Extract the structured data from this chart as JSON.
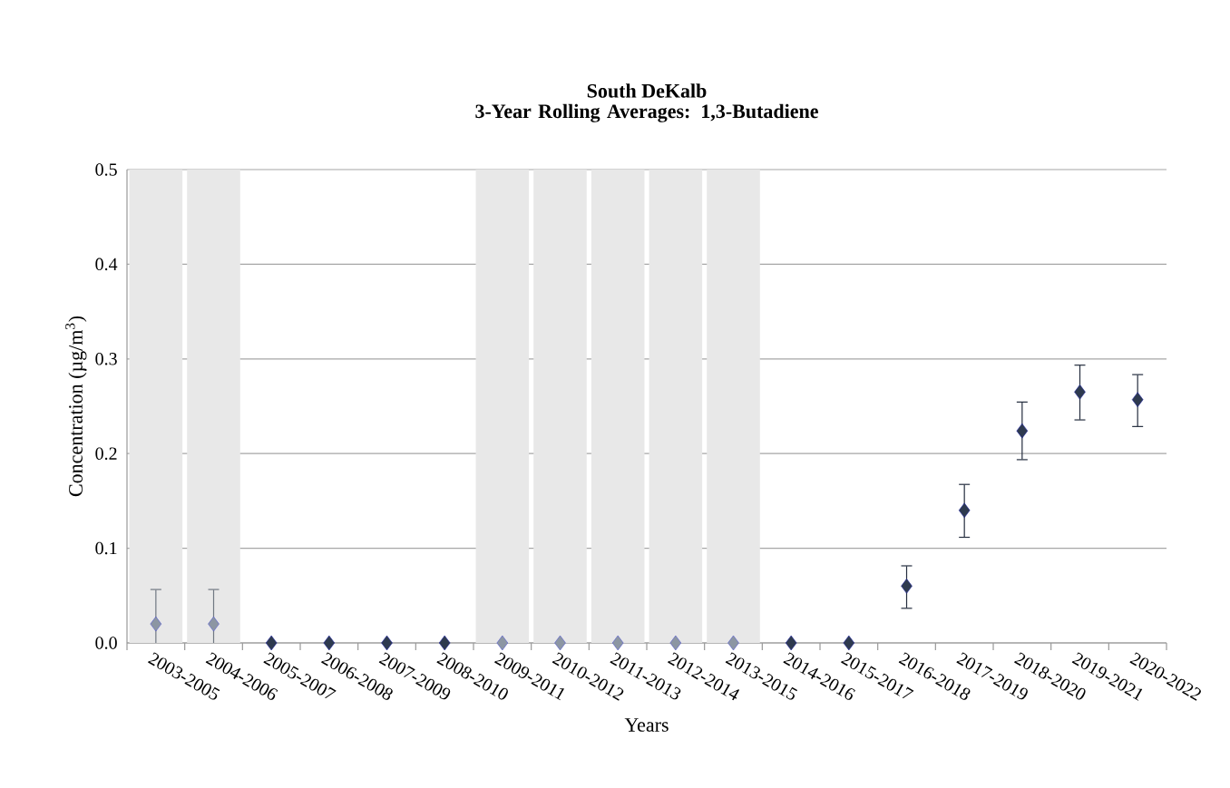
{
  "chart_data": {
    "type": "scatter",
    "title": "South DeKalb",
    "subtitle": "3-Year Rolling Averages: 1,3-Butadiene",
    "xlabel": "Years",
    "ylabel": "Concentration (µg/m$^{3}$)",
    "categories": [
      "2003-2005",
      "2004-2006",
      "2005-2007",
      "2006-2008",
      "2007-2009",
      "2008-2010",
      "2009-2011",
      "2010-2012",
      "2011-2013",
      "2012-2014",
      "2013-2015",
      "2014-2016",
      "2015-2017",
      "2016-2018",
      "2017-2019",
      "2018-2020",
      "2019-2021",
      "2020-2022"
    ],
    "values": [
      0.02,
      0.02,
      0,
      0,
      0,
      0,
      0,
      0,
      0,
      0,
      0,
      0,
      0,
      0.06,
      0.14,
      0.224,
      0.265,
      0.257
    ],
    "colors": [
      "#8c96a3",
      "#8c96a3",
      "#2e3a4f",
      "#2e3a4f",
      "#2e3a4f",
      "#2e3a4f",
      "#8c96a3",
      "#8c96a3",
      "#8c96a3",
      "#8c96a3",
      "#8c96a3",
      "#2e3a4f",
      "#2e3a4f",
      "#2e3a4f",
      "#2e3a4f",
      "#2e3a4f",
      "#2e3a4f",
      "#2e3a4f"
    ],
    "errors": [
      [
        0,
        0.057
      ],
      [
        0,
        0.057
      ],
      null,
      null,
      null,
      null,
      null,
      null,
      null,
      null,
      null,
      null,
      null,
      [
        0.036,
        0.082
      ],
      [
        0.111,
        0.168
      ],
      [
        0.193,
        0.255
      ],
      [
        0.235,
        0.294
      ],
      [
        0.228,
        0.284
      ]
    ],
    "ylim": [
      0,
      0.5
    ],
    "yticks": [
      {
        "value": 0,
        "label": "0.0"
      },
      {
        "value": 0.1,
        "label": "0.1"
      },
      {
        "value": 0.2,
        "label": "0.2"
      },
      {
        "value": 0.3,
        "label": "0.3"
      },
      {
        "value": 0.4,
        "label": "0.4"
      },
      {
        "value": 0.5,
        "label": "0.5"
      }
    ],
    "grid": "y",
    "marker": "diamond",
    "bands": [
      {
        "axis": "x",
        "from": "2003-2005",
        "to": "2003-2005",
        "color": "#e8e8e8"
      },
      {
        "axis": "x",
        "from": "2004-2006",
        "to": "2004-2006",
        "color": "#e8e8e8"
      },
      {
        "axis": "x",
        "from": "2009-2011",
        "to": "2009-2011",
        "color": "#e8e8e8"
      },
      {
        "axis": "x",
        "from": "2010-2012",
        "to": "2010-2012",
        "color": "#e8e8e8"
      },
      {
        "axis": "x",
        "from": "2011-2013",
        "to": "2011-2013",
        "color": "#e8e8e8"
      },
      {
        "axis": "x",
        "from": "2012-2014",
        "to": "2012-2014",
        "color": "#e8e8e8"
      },
      {
        "axis": "x",
        "from": "2013-2015",
        "to": "2013-2015",
        "color": "#e8e8e8"
      }
    ]
  }
}
